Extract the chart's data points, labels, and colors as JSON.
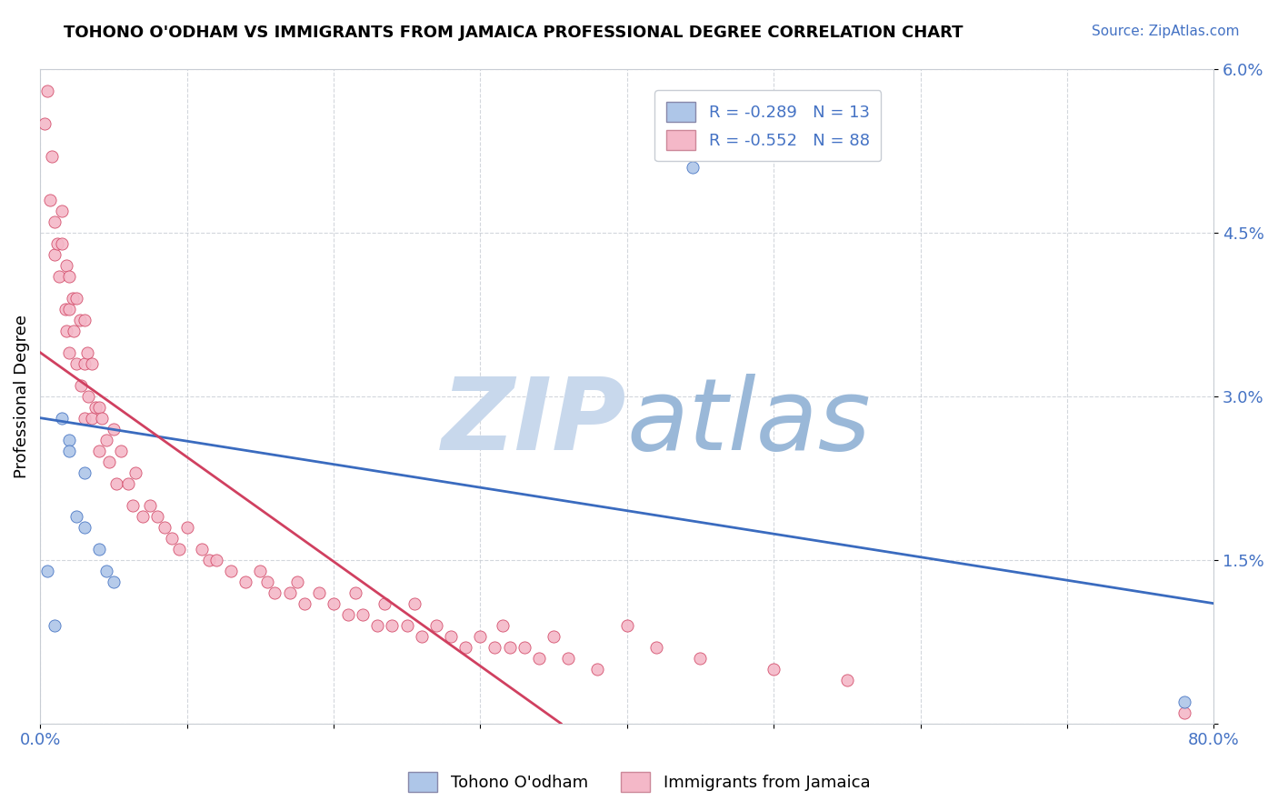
{
  "title": "TOHONO O'ODHAM VS IMMIGRANTS FROM JAMAICA PROFESSIONAL DEGREE CORRELATION CHART",
  "source": "Source: ZipAtlas.com",
  "ylabel": "Professional Degree",
  "xlim": [
    0,
    0.8
  ],
  "ylim": [
    0,
    0.06
  ],
  "xticks": [
    0.0,
    0.1,
    0.2,
    0.3,
    0.4,
    0.5,
    0.6,
    0.7,
    0.8
  ],
  "yticks": [
    0.0,
    0.015,
    0.03,
    0.045,
    0.06
  ],
  "ytick_labels": [
    "",
    "1.5%",
    "3.0%",
    "4.5%",
    "6.0%"
  ],
  "xtick_display": [
    "0.0%",
    "",
    "",
    "",
    "",
    "",
    "",
    "",
    "80.0%"
  ],
  "blue_R": -0.289,
  "blue_N": 13,
  "pink_R": -0.552,
  "pink_N": 88,
  "blue_color": "#aec6e8",
  "pink_color": "#f4b8c8",
  "blue_line_color": "#3a6bbf",
  "pink_line_color": "#d04060",
  "legend_label_blue": "Tohono O'odham",
  "legend_label_pink": "Immigrants from Jamaica",
  "blue_line_x0": 0.0,
  "blue_line_y0": 0.028,
  "blue_line_x1": 0.8,
  "blue_line_y1": 0.011,
  "pink_line_x0": 0.0,
  "pink_line_y0": 0.034,
  "pink_line_x1": 0.355,
  "pink_line_y1": 0.0,
  "blue_scatter_x": [
    0.005,
    0.01,
    0.015,
    0.02,
    0.02,
    0.025,
    0.03,
    0.03,
    0.04,
    0.045,
    0.05,
    0.445,
    0.78
  ],
  "blue_scatter_y": [
    0.014,
    0.009,
    0.028,
    0.026,
    0.025,
    0.019,
    0.023,
    0.018,
    0.016,
    0.014,
    0.013,
    0.051,
    0.002
  ],
  "pink_scatter_x": [
    0.003,
    0.005,
    0.007,
    0.008,
    0.01,
    0.01,
    0.012,
    0.013,
    0.015,
    0.015,
    0.017,
    0.018,
    0.018,
    0.02,
    0.02,
    0.02,
    0.022,
    0.023,
    0.025,
    0.025,
    0.027,
    0.028,
    0.03,
    0.03,
    0.03,
    0.032,
    0.033,
    0.035,
    0.035,
    0.038,
    0.04,
    0.04,
    0.042,
    0.045,
    0.047,
    0.05,
    0.052,
    0.055,
    0.06,
    0.063,
    0.065,
    0.07,
    0.075,
    0.08,
    0.085,
    0.09,
    0.095,
    0.1,
    0.11,
    0.115,
    0.12,
    0.13,
    0.14,
    0.15,
    0.155,
    0.16,
    0.17,
    0.175,
    0.18,
    0.19,
    0.2,
    0.21,
    0.215,
    0.22,
    0.23,
    0.235,
    0.24,
    0.25,
    0.255,
    0.26,
    0.27,
    0.28,
    0.29,
    0.3,
    0.31,
    0.315,
    0.32,
    0.33,
    0.34,
    0.35,
    0.36,
    0.38,
    0.4,
    0.42,
    0.45,
    0.5,
    0.55,
    0.78
  ],
  "pink_scatter_y": [
    0.055,
    0.058,
    0.048,
    0.052,
    0.043,
    0.046,
    0.044,
    0.041,
    0.044,
    0.047,
    0.038,
    0.042,
    0.036,
    0.041,
    0.038,
    0.034,
    0.039,
    0.036,
    0.039,
    0.033,
    0.037,
    0.031,
    0.037,
    0.033,
    0.028,
    0.034,
    0.03,
    0.033,
    0.028,
    0.029,
    0.029,
    0.025,
    0.028,
    0.026,
    0.024,
    0.027,
    0.022,
    0.025,
    0.022,
    0.02,
    0.023,
    0.019,
    0.02,
    0.019,
    0.018,
    0.017,
    0.016,
    0.018,
    0.016,
    0.015,
    0.015,
    0.014,
    0.013,
    0.014,
    0.013,
    0.012,
    0.012,
    0.013,
    0.011,
    0.012,
    0.011,
    0.01,
    0.012,
    0.01,
    0.009,
    0.011,
    0.009,
    0.009,
    0.011,
    0.008,
    0.009,
    0.008,
    0.007,
    0.008,
    0.007,
    0.009,
    0.007,
    0.007,
    0.006,
    0.008,
    0.006,
    0.005,
    0.009,
    0.007,
    0.006,
    0.005,
    0.004,
    0.001
  ]
}
